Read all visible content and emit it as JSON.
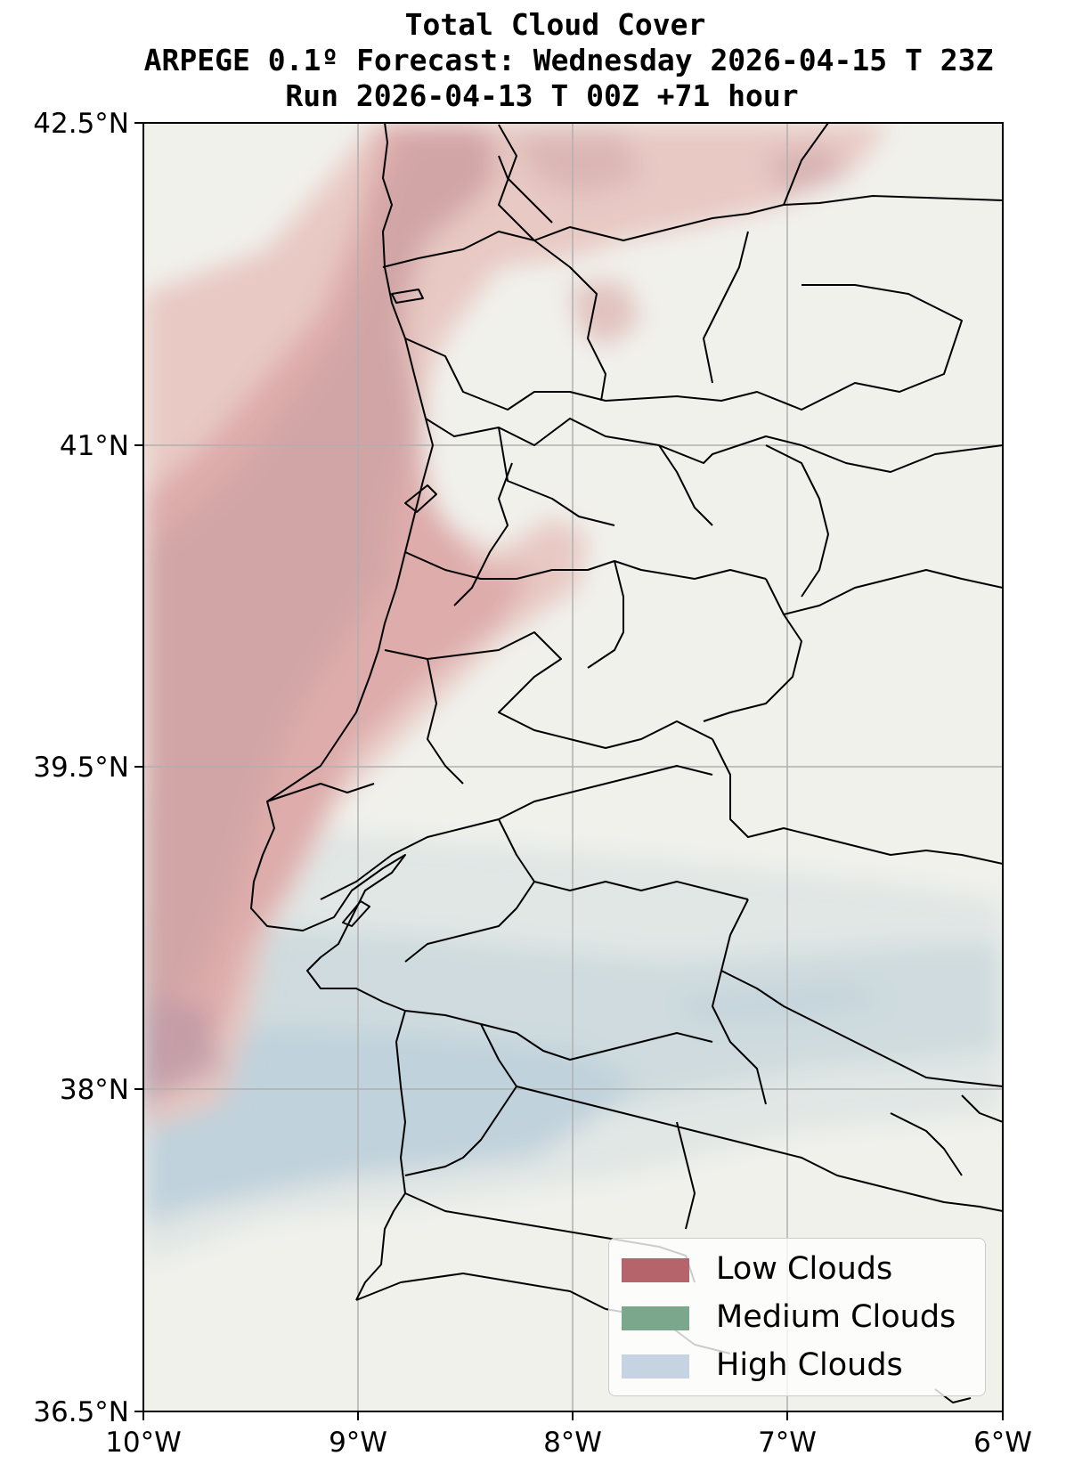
{
  "title": {
    "line1": "Total Cloud Cover",
    "line2": "ARPEGE 0.1º Forecast: Wednesday 2026-04-15 T 23Z",
    "line3": "Run 2026-04-13 T 00Z +71 hour"
  },
  "axes": {
    "lon_ticks": [
      "10°W",
      "9°W",
      "8°W",
      "7°W",
      "6°W"
    ],
    "lat_ticks": [
      "42.5°N",
      "41°N",
      "39.5°N",
      "38°N",
      "36.5°N"
    ],
    "lon_range": [
      -10,
      -6
    ],
    "lat_range": [
      36.5,
      42.5
    ],
    "grid": true
  },
  "legend": {
    "placement": "bottom-right",
    "items": [
      {
        "label": "Low Clouds",
        "color": "#b5646b"
      },
      {
        "label": "Medium Clouds",
        "color": "#7ba78c"
      },
      {
        "label": "High Clouds",
        "color": "#c6d3e2"
      }
    ]
  },
  "colors": {
    "background": "#f1f1ec",
    "low_cloud": "#b5646b",
    "high_cloud": "#b9ccd8",
    "border": "#000000",
    "grid": "#b0b0b0"
  }
}
